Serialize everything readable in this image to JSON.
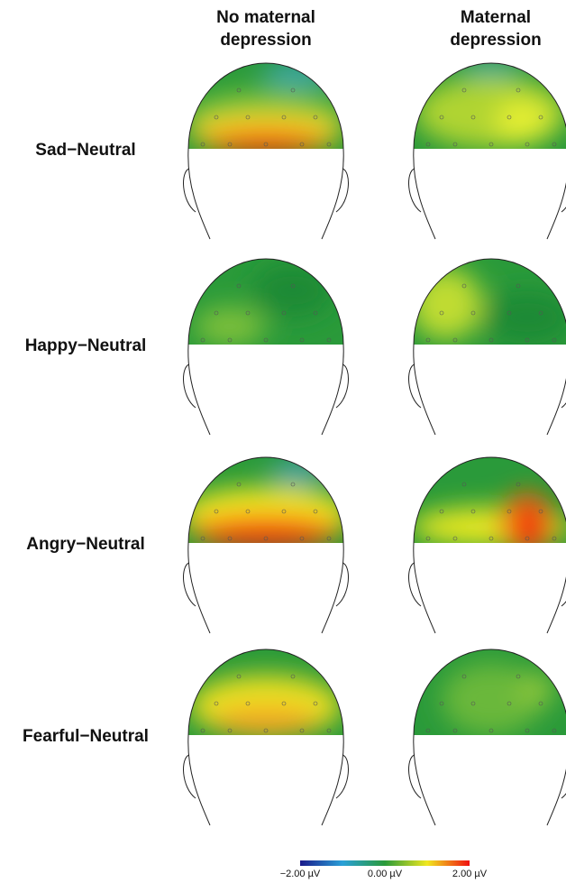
{
  "header": {
    "columns": [
      [
        "No maternal",
        "depression"
      ],
      [
        "Maternal",
        "depression"
      ]
    ]
  },
  "rows": [
    "Sad−Neutral",
    "Happy−Neutral",
    "Angry−Neutral",
    "Fearful−Neutral"
  ],
  "colorbar": {
    "labels": [
      "−2.00 µV",
      "0.00 µV",
      "2.00 µV"
    ]
  }
}
